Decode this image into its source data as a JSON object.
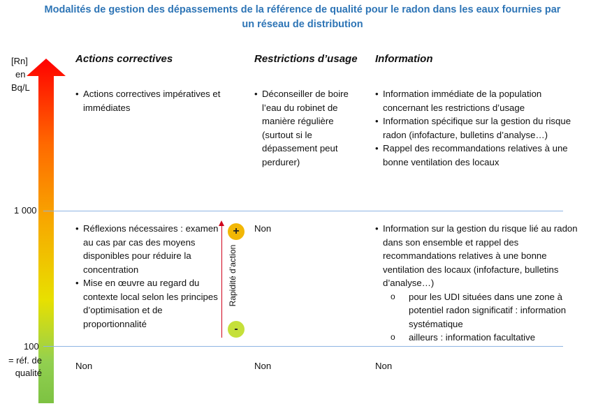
{
  "title": {
    "line1": "Modalités de gestion des dépassements de la référence de qualité pour le radon dans les eaux fournies par",
    "line2": "un réseau de distribution"
  },
  "axis": {
    "unit_lines": [
      "[Rn]",
      "en",
      "Bq/L"
    ],
    "tick_1000": "1 000",
    "tick_100": "100",
    "ref_lines": [
      "= réf. de",
      "qualité"
    ],
    "gradient_colors": [
      "#FF0000",
      "#FF6A00",
      "#F7A800",
      "#E8E000",
      "#92D050",
      "#7DC242"
    ]
  },
  "columns": {
    "actions": "Actions correctives",
    "restrictions": "Restrictions d’usage",
    "information": "Information"
  },
  "rows": {
    "high": {
      "actions": [
        "Actions correctives impératives et immédiates"
      ],
      "restrictions": [
        "Déconseiller de boire l’eau du robinet de manière régulière (surtout si le dépassement peut perdurer)"
      ],
      "information": [
        "Information immédiate de la population concernant les restrictions d’usage",
        "Information spécifique sur la gestion du risque radon (infofacture, bulletins d’analyse…)",
        "Rappel des recommandations relatives à une bonne ventilation des locaux"
      ]
    },
    "mid": {
      "actions": [
        "Réflexions nécessaires : examen au cas par cas des moyens disponibles pour réduire la concentration",
        "Mise en œuvre au regard du contexte local selon les principes d’optimisation et de proportionnalité"
      ],
      "restrictions": "Non",
      "information": "Information sur la gestion du risque lié au radon dans son ensemble et rappel des recommandations relatives à une bonne ventilation des locaux (infofacture, bulletins d’analyse…)",
      "information_sub": [
        "pour les UDI situées dans une zone à potentiel radon significatif : information systématique",
        "ailleurs : information facultative"
      ]
    },
    "low": {
      "actions": "Non",
      "restrictions": "Non",
      "information": "Non"
    }
  },
  "speed": {
    "label": "Rapidité d’action",
    "plus": "+",
    "minus": "-"
  }
}
